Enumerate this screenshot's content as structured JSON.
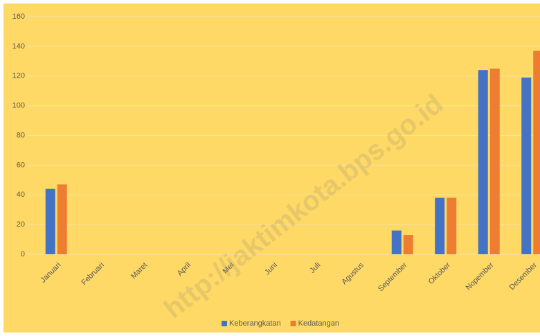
{
  "chart_data": {
    "type": "bar",
    "categories": [
      "Januari",
      "Februari",
      "Maret",
      "April",
      "Mei",
      "Juni",
      "Juli",
      "Agustus",
      "September",
      "Oktober",
      "Nopember",
      "Desember"
    ],
    "series": [
      {
        "name": "Keberangkatan",
        "color": "#4472c4",
        "values": [
          44,
          0,
          0,
          0,
          0,
          0,
          0,
          0,
          16,
          38,
          124,
          119
        ]
      },
      {
        "name": "Kedatangan",
        "color": "#ed7d31",
        "values": [
          47,
          0,
          0,
          0,
          0,
          0,
          0,
          0,
          13,
          38,
          125,
          137
        ]
      }
    ],
    "ylim": [
      0,
      160
    ],
    "yticks": [
      0,
      20,
      40,
      60,
      80,
      100,
      120,
      140,
      160
    ],
    "grid": true,
    "background": "#ffd966",
    "legend": "bottom",
    "watermark": "http://jaktimkota.bps.go.id"
  }
}
